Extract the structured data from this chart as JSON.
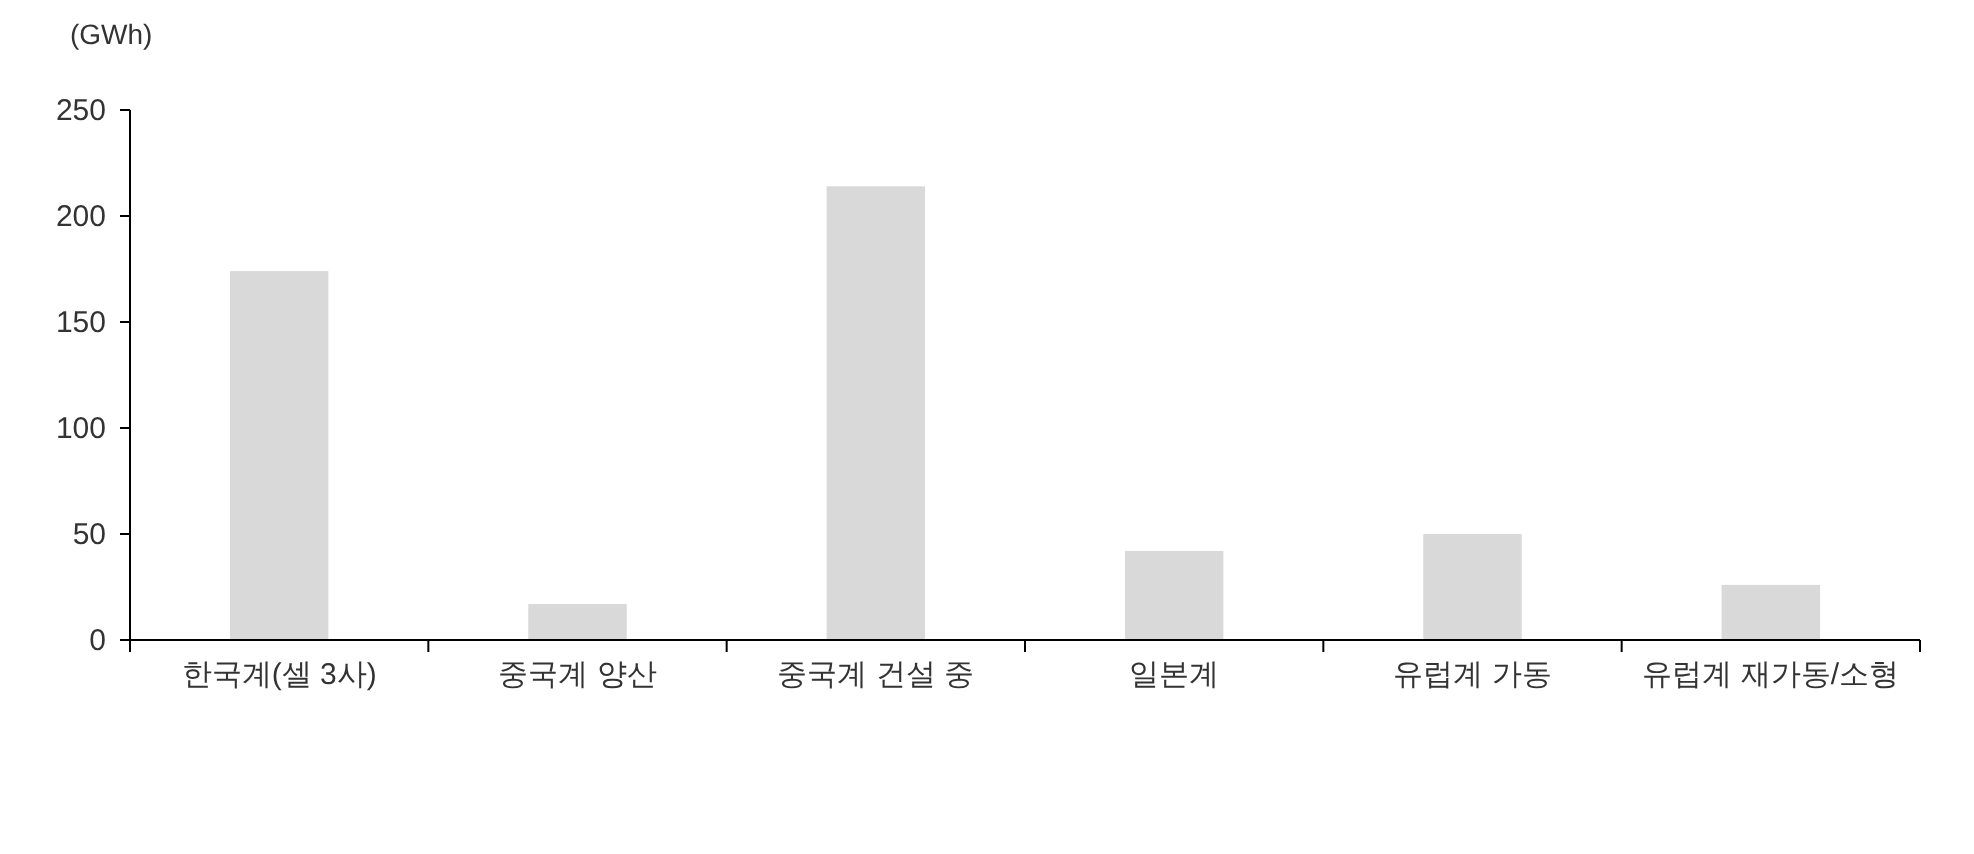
{
  "chart_data": {
    "type": "bar",
    "ylabel": "(GWh)",
    "categories": [
      "한국계(셀 3사)",
      "중국계 양산",
      "중국계 건설 중",
      "일본계",
      "유럽계 가동",
      "유럽계 재가동/소형"
    ],
    "values": [
      174,
      17,
      214,
      42,
      50,
      26
    ],
    "color": "#d9d9d9",
    "ylim": [
      0,
      250
    ],
    "yticks": [
      0,
      50,
      100,
      150,
      200,
      250
    ]
  }
}
